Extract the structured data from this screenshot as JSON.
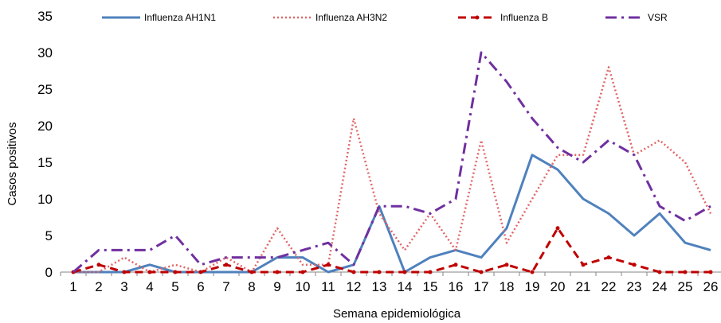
{
  "chart_data": {
    "type": "line",
    "title": "",
    "xlabel": "Semana epidemiológica",
    "ylabel": "Casos positivos",
    "categories": [
      "1",
      "2",
      "3",
      "4",
      "5",
      "6",
      "7",
      "8",
      "9",
      "10",
      "11",
      "12",
      "13",
      "14",
      "15",
      "16",
      "17",
      "18",
      "19",
      "20",
      "21",
      "22",
      "23",
      "24",
      "25",
      "26"
    ],
    "ylim": [
      0,
      35
    ],
    "yticks": [
      0,
      5,
      10,
      15,
      20,
      25,
      30,
      35
    ],
    "grid": false,
    "legend": "top",
    "series": [
      {
        "name": "Influenza AH1N1",
        "color": "#4f81bd",
        "style": "solid",
        "values": [
          0,
          0,
          0,
          1,
          0,
          0,
          0,
          0,
          2,
          2,
          0,
          1,
          9,
          0,
          2,
          3,
          2,
          6,
          16,
          14,
          10,
          8,
          5,
          8,
          4,
          3
        ]
      },
      {
        "name": "Influenza AH3N2",
        "color": "#e06666",
        "style": "dotted",
        "values": [
          0,
          0,
          2,
          0,
          1,
          0,
          2,
          0,
          6,
          1,
          1,
          21,
          8,
          3,
          8,
          3,
          18,
          4,
          10,
          16,
          16,
          28,
          16,
          18,
          15,
          8
        ]
      },
      {
        "name": "Influenza B",
        "color": "#c00000",
        "style": "dashed",
        "values": [
          0,
          1,
          0,
          0,
          0,
          0,
          1,
          0,
          0,
          0,
          1,
          0,
          0,
          0,
          0,
          1,
          0,
          1,
          0,
          6,
          1,
          2,
          1,
          0,
          0,
          0
        ]
      },
      {
        "name": "VSR",
        "color": "#7030a0",
        "style": "dashdot",
        "values": [
          0,
          3,
          3,
          3,
          5,
          1,
          2,
          2,
          2,
          3,
          4,
          1,
          9,
          9,
          8,
          10,
          30,
          26,
          21,
          17,
          15,
          18,
          16,
          9,
          7,
          9
        ]
      }
    ]
  }
}
